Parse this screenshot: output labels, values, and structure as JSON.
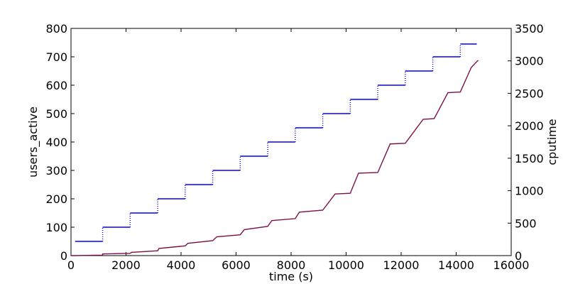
{
  "chart_data": {
    "type": "line",
    "title": "",
    "xlabel": "time (s)",
    "ylabel_left": "users_active",
    "ylabel_right": "cputime",
    "xlim": [
      0,
      16000
    ],
    "ylim_left": [
      0,
      800
    ],
    "ylim_right": [
      0,
      3500
    ],
    "xticks": [
      "0",
      "2000",
      "4000",
      "6000",
      "8000",
      "10000",
      "12000",
      "14000",
      "16000"
    ],
    "yticks_left": [
      "0",
      "100",
      "200",
      "300",
      "400",
      "500",
      "600",
      "700",
      "800"
    ],
    "yticks_right": [
      "0",
      "500",
      "1000",
      "1500",
      "2000",
      "2500",
      "3000",
      "3500"
    ],
    "grid": false,
    "legend": "none",
    "series": [
      {
        "axis": "left",
        "style": "dotted-step",
        "color": "#0000ff",
        "points": [
          [
            150,
            50
          ],
          [
            1150,
            50
          ],
          [
            1150,
            100
          ],
          [
            2150,
            100
          ],
          [
            2150,
            150
          ],
          [
            3150,
            150
          ],
          [
            3150,
            200
          ],
          [
            4150,
            200
          ],
          [
            4150,
            250
          ],
          [
            5150,
            250
          ],
          [
            5150,
            300
          ],
          [
            6150,
            300
          ],
          [
            6150,
            350
          ],
          [
            7150,
            350
          ],
          [
            7150,
            400
          ],
          [
            8150,
            400
          ],
          [
            8150,
            450
          ],
          [
            9150,
            450
          ],
          [
            9150,
            500
          ],
          [
            10150,
            500
          ],
          [
            10150,
            550
          ],
          [
            11150,
            550
          ],
          [
            11150,
            600
          ],
          [
            12150,
            600
          ],
          [
            12150,
            650
          ],
          [
            13150,
            650
          ],
          [
            13150,
            700
          ],
          [
            14150,
            700
          ],
          [
            14150,
            745
          ],
          [
            14750,
            745
          ]
        ]
      },
      {
        "axis": "right",
        "style": "line",
        "color": "#7a0f4a",
        "points": [
          [
            0,
            0
          ],
          [
            150,
            0
          ],
          [
            1150,
            8
          ],
          [
            1150,
            25
          ],
          [
            2150,
            35
          ],
          [
            2200,
            50
          ],
          [
            3150,
            75
          ],
          [
            3200,
            110
          ],
          [
            4150,
            150
          ],
          [
            4250,
            190
          ],
          [
            5150,
            230
          ],
          [
            5300,
            290
          ],
          [
            6150,
            320
          ],
          [
            6300,
            400
          ],
          [
            7150,
            450
          ],
          [
            7300,
            540
          ],
          [
            8150,
            570
          ],
          [
            8300,
            670
          ],
          [
            9150,
            700
          ],
          [
            9600,
            950
          ],
          [
            10150,
            960
          ],
          [
            10450,
            1270
          ],
          [
            11150,
            1280
          ],
          [
            11600,
            1720
          ],
          [
            12150,
            1730
          ],
          [
            12800,
            2100
          ],
          [
            13200,
            2110
          ],
          [
            13700,
            2510
          ],
          [
            14150,
            2520
          ],
          [
            14550,
            2900
          ],
          [
            14800,
            3010
          ]
        ]
      }
    ]
  }
}
